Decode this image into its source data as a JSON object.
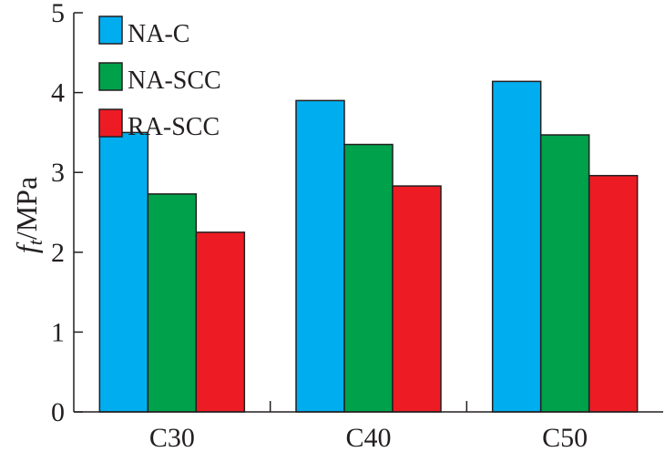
{
  "chart_data": {
    "type": "bar",
    "title": "",
    "xlabel": "",
    "ylabel": {
      "symbol": "f",
      "subscript": "t",
      "unit": "/MPa"
    },
    "ylim": [
      0,
      5
    ],
    "yticks": [
      "0",
      "1",
      "2",
      "3",
      "4",
      "5"
    ],
    "categories": [
      "C30",
      "C40",
      "C50"
    ],
    "series": [
      {
        "name": "NA-C",
        "color": "#00aeef",
        "values": [
          3.5,
          3.9,
          4.14
        ]
      },
      {
        "name": "NA-SCC",
        "color": "#00a14b",
        "values": [
          2.73,
          3.35,
          3.47
        ]
      },
      {
        "name": "RA-SCC",
        "color": "#ed1c24",
        "values": [
          2.25,
          2.83,
          2.96
        ]
      }
    ],
    "grid": false,
    "legend": "top-left"
  }
}
